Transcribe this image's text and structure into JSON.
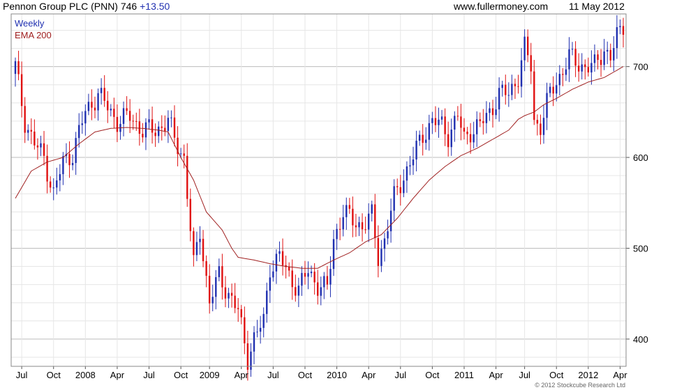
{
  "header": {
    "instrument": "Pennon Group PLC (PNN) 746",
    "change": "+13.50",
    "website": "www.fullermoney.com",
    "date": "11 May 2012"
  },
  "footer": {
    "copyright": "© 2012 Stockcube Research Ltd"
  },
  "colors": {
    "up": "#1f2fb0",
    "down": "#e01010",
    "ema": "#a02020",
    "grid": "#cfcfcf"
  },
  "chart_data": {
    "type": "candlestick",
    "title": "Pennon Group PLC (PNN) 746 +13.50",
    "legend": [
      "Weekly",
      "EMA 200"
    ],
    "legend_position": "top-left",
    "grid": true,
    "ylim": [
      370,
      758
    ],
    "y_ticks": [
      400,
      500,
      600,
      700
    ],
    "x_ticks": [
      "Jul",
      "Oct",
      "2008",
      "Apr",
      "Jul",
      "Oct",
      "2009",
      "Apr",
      "Jul",
      "Oct",
      "2010",
      "Apr",
      "Jul",
      "Oct",
      "2011",
      "Apr",
      "Jul",
      "Oct",
      "2012",
      "Apr"
    ],
    "close_anchors": [
      [
        0,
        700
      ],
      [
        3,
        640
      ],
      [
        6,
        615
      ],
      [
        9,
        600
      ],
      [
        12,
        560
      ],
      [
        15,
        595
      ],
      [
        18,
        605
      ],
      [
        22,
        650
      ],
      [
        26,
        670
      ],
      [
        28,
        660
      ],
      [
        32,
        640
      ],
      [
        36,
        645
      ],
      [
        40,
        630
      ],
      [
        44,
        630
      ],
      [
        48,
        640
      ],
      [
        50,
        620
      ],
      [
        53,
        600
      ],
      [
        56,
        480
      ],
      [
        58,
        520
      ],
      [
        61,
        440
      ],
      [
        64,
        470
      ],
      [
        67,
        450
      ],
      [
        70,
        430
      ],
      [
        73,
        380
      ],
      [
        75,
        400
      ],
      [
        78,
        420
      ],
      [
        80,
        480
      ],
      [
        83,
        490
      ],
      [
        86,
        470
      ],
      [
        89,
        455
      ],
      [
        92,
        475
      ],
      [
        95,
        460
      ],
      [
        98,
        455
      ],
      [
        100,
        510
      ],
      [
        103,
        540
      ],
      [
        106,
        530
      ],
      [
        109,
        525
      ],
      [
        112,
        535
      ],
      [
        114,
        490
      ],
      [
        116,
        510
      ],
      [
        119,
        555
      ],
      [
        122,
        580
      ],
      [
        125,
        600
      ],
      [
        128,
        625
      ],
      [
        131,
        640
      ],
      [
        134,
        635
      ],
      [
        136,
        625
      ],
      [
        139,
        645
      ],
      [
        141,
        620
      ],
      [
        143,
        630
      ],
      [
        146,
        635
      ],
      [
        149,
        650
      ],
      [
        152,
        670
      ],
      [
        155,
        670
      ],
      [
        158,
        690
      ],
      [
        160,
        720
      ],
      [
        162,
        700
      ],
      [
        163,
        640
      ],
      [
        165,
        635
      ],
      [
        168,
        670
      ],
      [
        171,
        690
      ],
      [
        174,
        710
      ],
      [
        176,
        705
      ],
      [
        179,
        700
      ],
      [
        182,
        700
      ],
      [
        185,
        720
      ],
      [
        187,
        710
      ],
      [
        189,
        732
      ],
      [
        191,
        746
      ]
    ],
    "ema_anchors": [
      [
        0,
        555
      ],
      [
        5,
        585
      ],
      [
        10,
        595
      ],
      [
        15,
        600
      ],
      [
        20,
        615
      ],
      [
        25,
        628
      ],
      [
        30,
        632
      ],
      [
        35,
        633
      ],
      [
        40,
        632
      ],
      [
        45,
        630
      ],
      [
        48,
        628
      ],
      [
        52,
        600
      ],
      [
        56,
        575
      ],
      [
        60,
        540
      ],
      [
        65,
        520
      ],
      [
        68,
        500
      ],
      [
        70,
        490
      ],
      [
        75,
        487
      ],
      [
        80,
        483
      ],
      [
        85,
        480
      ],
      [
        90,
        478
      ],
      [
        95,
        478
      ],
      [
        100,
        487
      ],
      [
        105,
        495
      ],
      [
        110,
        507
      ],
      [
        115,
        515
      ],
      [
        120,
        533
      ],
      [
        125,
        555
      ],
      [
        130,
        575
      ],
      [
        135,
        590
      ],
      [
        140,
        602
      ],
      [
        145,
        610
      ],
      [
        150,
        620
      ],
      [
        155,
        630
      ],
      [
        158,
        642
      ],
      [
        160,
        646
      ],
      [
        163,
        650
      ],
      [
        166,
        658
      ],
      [
        170,
        665
      ],
      [
        175,
        675
      ],
      [
        180,
        683
      ],
      [
        185,
        688
      ],
      [
        191,
        700
      ]
    ]
  }
}
